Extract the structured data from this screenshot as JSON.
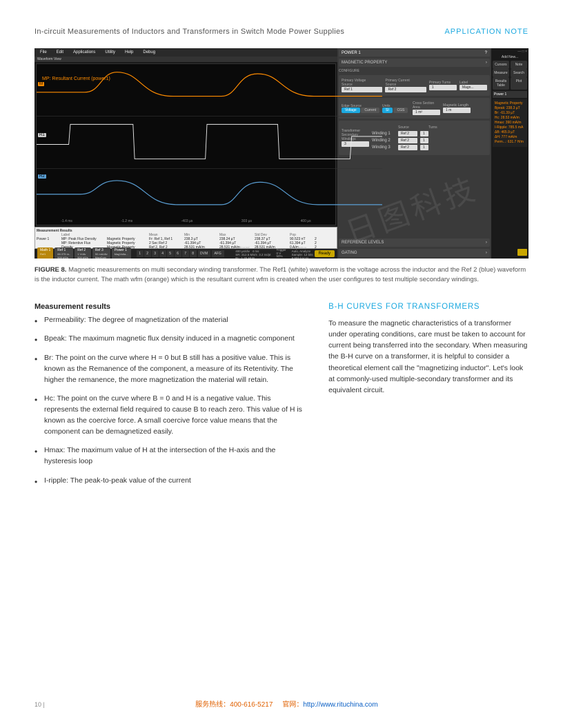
{
  "header": {
    "title": "In-circuit Measurements of Inductors and Transformers in Switch Mode Power Supplies",
    "badge": "APPLICATION NOTE"
  },
  "screenshot": {
    "menu": [
      "File",
      "Edit",
      "Applications",
      "Utility",
      "Help",
      "Debug"
    ],
    "waveform_label_title": "Waveform View",
    "waveform_label": "MP: Resultant Current (power1)",
    "time_ticks": [
      "-1.4 ms",
      "-1.2 ms",
      "-403 µs",
      "303 µs",
      "400 µs"
    ],
    "trace_colors": {
      "math": "#ff8c00",
      "ref1": "#e8e8e8",
      "ref2": "#5a9fd4"
    },
    "channel_badges": [
      {
        "label": "Math 1",
        "sub": "Ref1",
        "class": "math"
      },
      {
        "label": "Ref 1",
        "sub": "88.375 m..\n500 kS/s"
      },
      {
        "label": "Ref 2",
        "sub": "1 V/div\n500 kS/s"
      },
      {
        "label": "Ref 3",
        "sub": "50 mA/div\nMagCurv"
      },
      {
        "label": "Power 1",
        "sub": "MagVolta..."
      }
    ],
    "num_buttons": [
      "1",
      "2",
      "3",
      "4",
      "5",
      "6",
      "7",
      "8"
    ],
    "extra_buttons": [
      "DVM",
      "AFG"
    ],
    "horiz_readout": "Horizontal\n400 µs/div   4 ms\nSR: 312.5 MS/s  3.2 ns/pt\nRL: 1.25 Mpts",
    "trigger_readout": "Trigger\n0 V\n50%",
    "acq_readout": "Acquisition\nAuto, Analyze\nSample: 12 bits\n8.955 kAcqs",
    "ready": "Ready",
    "meas_header": "Measurement Results",
    "meas_cols": [
      "",
      "Label",
      "",
      "Mean",
      "Min",
      "Max",
      "Std Dev",
      "Pop",
      ""
    ],
    "meas_rows": [
      [
        "Power 1",
        "MP: Peak Flux Density",
        "Magnetic Property",
        "Fr: Ref 1, Ref 1",
        "238.3 µT",
        "238.24 µT",
        "238.37 µT",
        "90.523 nT",
        "2"
      ],
      [
        "",
        "MP: Retentive Flux",
        "Magnetic Property",
        "2 Sec Ref 2",
        "-61.394 µT",
        "-61.394 µT",
        "-61.394 µT",
        "61.394 µT",
        "2"
      ],
      [
        "",
        "Density",
        "Magnetic Property",
        "Ref 2, Ref 2",
        "28.531 mA/m",
        "28.531 mA/m",
        "28.531 mA/m",
        "0 A/m",
        "2"
      ]
    ],
    "panel": {
      "title": "POWER 1",
      "subtitle": "MAGNETIC PROPERTY",
      "configure": "CONFIGURE",
      "primary_voltage_label": "Primary Voltage Source",
      "primary_current_label": "Primary Current Source",
      "primary_turns_label": "Primary Turns",
      "label_label": "Label",
      "ref1": "Ref 1",
      "ref2": "Ref 2",
      "turns1": "1",
      "magn": "Magn...",
      "edge_source": "Edge Source",
      "voltage": "Voltage",
      "current": "Current",
      "units": "Units",
      "si": "SI",
      "cgs": "CGS",
      "cross_area": "Cross Section Area",
      "cross_val": "1 m²",
      "mag_len": "Magnetic Length",
      "mag_val": "1 m",
      "transformer": "Transformer",
      "sec_windings": "Secondary Windings",
      "sec_val": "3",
      "source": "Source",
      "turns": "Turns",
      "windings": [
        {
          "name": "Winding 1",
          "src": "Ref 2",
          "t": "1"
        },
        {
          "name": "Winding 2",
          "src": "Ref 2",
          "t": "1"
        },
        {
          "name": "Winding 3",
          "src": "Ref 2",
          "t": "1"
        }
      ],
      "ref_levels": "REFERENCE LEVELS",
      "gating": "GATING"
    },
    "right_strip": {
      "add_new": "Add New...",
      "buttons": [
        [
          "Cursors",
          "Note"
        ],
        [
          "Measure",
          "Search"
        ],
        [
          "Results Table",
          "Plot"
        ]
      ],
      "power1": "Power 1",
      "info_lines": [
        "Magnetic Property",
        "Bpeak: 238.3 µT",
        "Br:    -61.39 µT",
        "Hc:    28.53 mA/m",
        "Hmax:  390 mA/m",
        "I-Ripple: 785.5 mA",
        "ΔB:    465.9 µT",
        "ΔH:    777 mA/m",
        "Perm...: 631.7 H/m"
      ]
    }
  },
  "figure_caption_label": "FIGURE 8.",
  "figure_caption": "Magnetic measurements on multi secondary winding transformer. The Ref1 (white) waveform is the voltage across the inductor and the Ref 2 (blue) waveform is the inductor current. The math wfm (orange) which is the resultant current wfm is created when the user configures to test multiple secondary windings.",
  "left_section": {
    "heading": "Measurement results",
    "bullets": [
      "Permeability: The degree of magnetization of the material",
      "Bpeak: The maximum magnetic flux density induced in a magnetic component",
      "Br: The point on the curve where H = 0 but B still has a positive value. This is known as the   Remanence of the component, a measure of its Retentivity. The higher the remanence, the more magnetization the material will retain.",
      "Hc: The point on the curve where B = 0 and H is a negative value. This represents the external field required to cause B to reach zero. This value of H is known as the coercive force. A small coercive force value means that the component can be demagnetized easily.",
      "Hmax: The maximum value of H at the intersection of the H-axis and the hysteresis loop",
      "I-ripple: The peak-to-peak value of the current"
    ]
  },
  "right_section": {
    "heading": "B-H CURVES FOR TRANSFORMERS",
    "body": "To measure the magnetic characteristics of a transformer under operating conditions, care must be taken to account for current being transferred into the secondary. When measuring the B-H curve on a transformer, it is helpful to consider a theoretical element call the \"magnetizing inductor\".  Let's look at commonly-used multiple-secondary transformer and its equivalent circuit."
  },
  "footer": {
    "page": "10  |",
    "hotline_label": "服务热线：",
    "hotline": "400-616-5217",
    "site_label": "官网：",
    "site": "http://www.rituchina.com"
  },
  "watermark": "日图科技"
}
